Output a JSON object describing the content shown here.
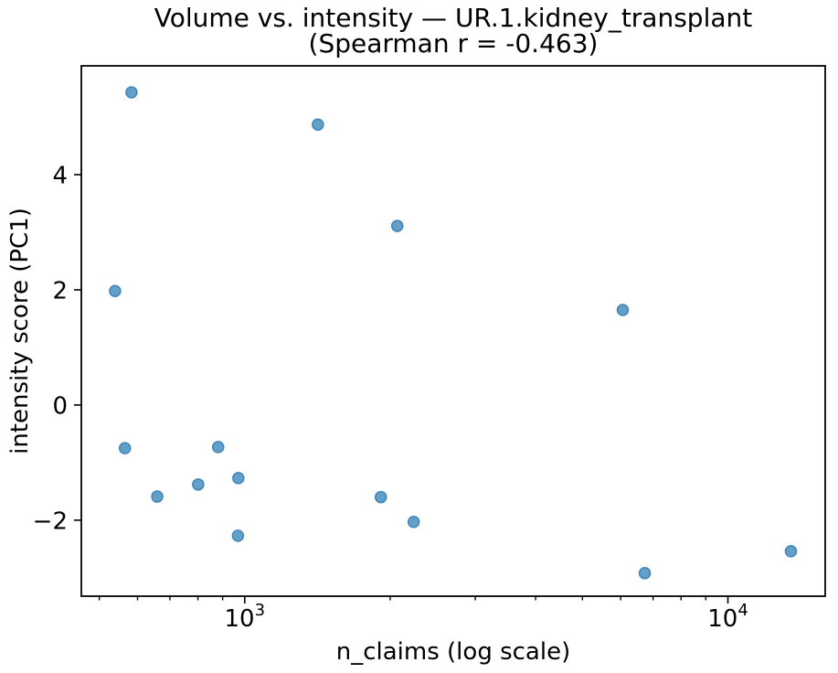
{
  "figure": {
    "title_line1": "Volume vs. intensity — UR.1.kidney_transplant",
    "title_line2": "(Spearman r = -0.463)"
  },
  "chart_data": {
    "type": "scatter",
    "title": "Volume vs. intensity — UR.1.kidney_transplant (Spearman r = -0.463)",
    "xlabel": "n_claims (log scale)",
    "ylabel": "intensity score (PC1)",
    "x_scale": "log",
    "xlim": [
      459,
      15900
    ],
    "ylim": [
      -3.32,
      5.89
    ],
    "grid": false,
    "legend": "none",
    "x_major_ticks": [
      {
        "value": 1000,
        "base": "10",
        "exp": "3"
      },
      {
        "value": 10000,
        "base": "10",
        "exp": "4"
      }
    ],
    "x_minor_ticks": [
      500,
      600,
      700,
      800,
      900,
      2000,
      3000,
      4000,
      5000,
      6000,
      7000,
      8000,
      9000
    ],
    "y_ticks": [
      {
        "value": -2,
        "label": "−2"
      },
      {
        "value": 0,
        "label": "0"
      },
      {
        "value": 2,
        "label": "2"
      },
      {
        "value": 4,
        "label": "4"
      }
    ],
    "marker": {
      "radius": 6,
      "fill": "#62a0ca",
      "stroke": "#4184b8"
    },
    "points": [
      {
        "x": 583,
        "y": 5.43
      },
      {
        "x": 1417,
        "y": 4.87
      },
      {
        "x": 2069,
        "y": 3.11
      },
      {
        "x": 539,
        "y": 1.98
      },
      {
        "x": 6060,
        "y": 1.65
      },
      {
        "x": 565,
        "y": -0.75
      },
      {
        "x": 881,
        "y": -0.73
      },
      {
        "x": 659,
        "y": -1.59
      },
      {
        "x": 801,
        "y": -1.38
      },
      {
        "x": 970,
        "y": -1.27
      },
      {
        "x": 1913,
        "y": -1.6
      },
      {
        "x": 2237,
        "y": -2.03
      },
      {
        "x": 968,
        "y": -2.27
      },
      {
        "x": 6730,
        "y": -2.92
      },
      {
        "x": 13503,
        "y": -2.54
      }
    ]
  }
}
